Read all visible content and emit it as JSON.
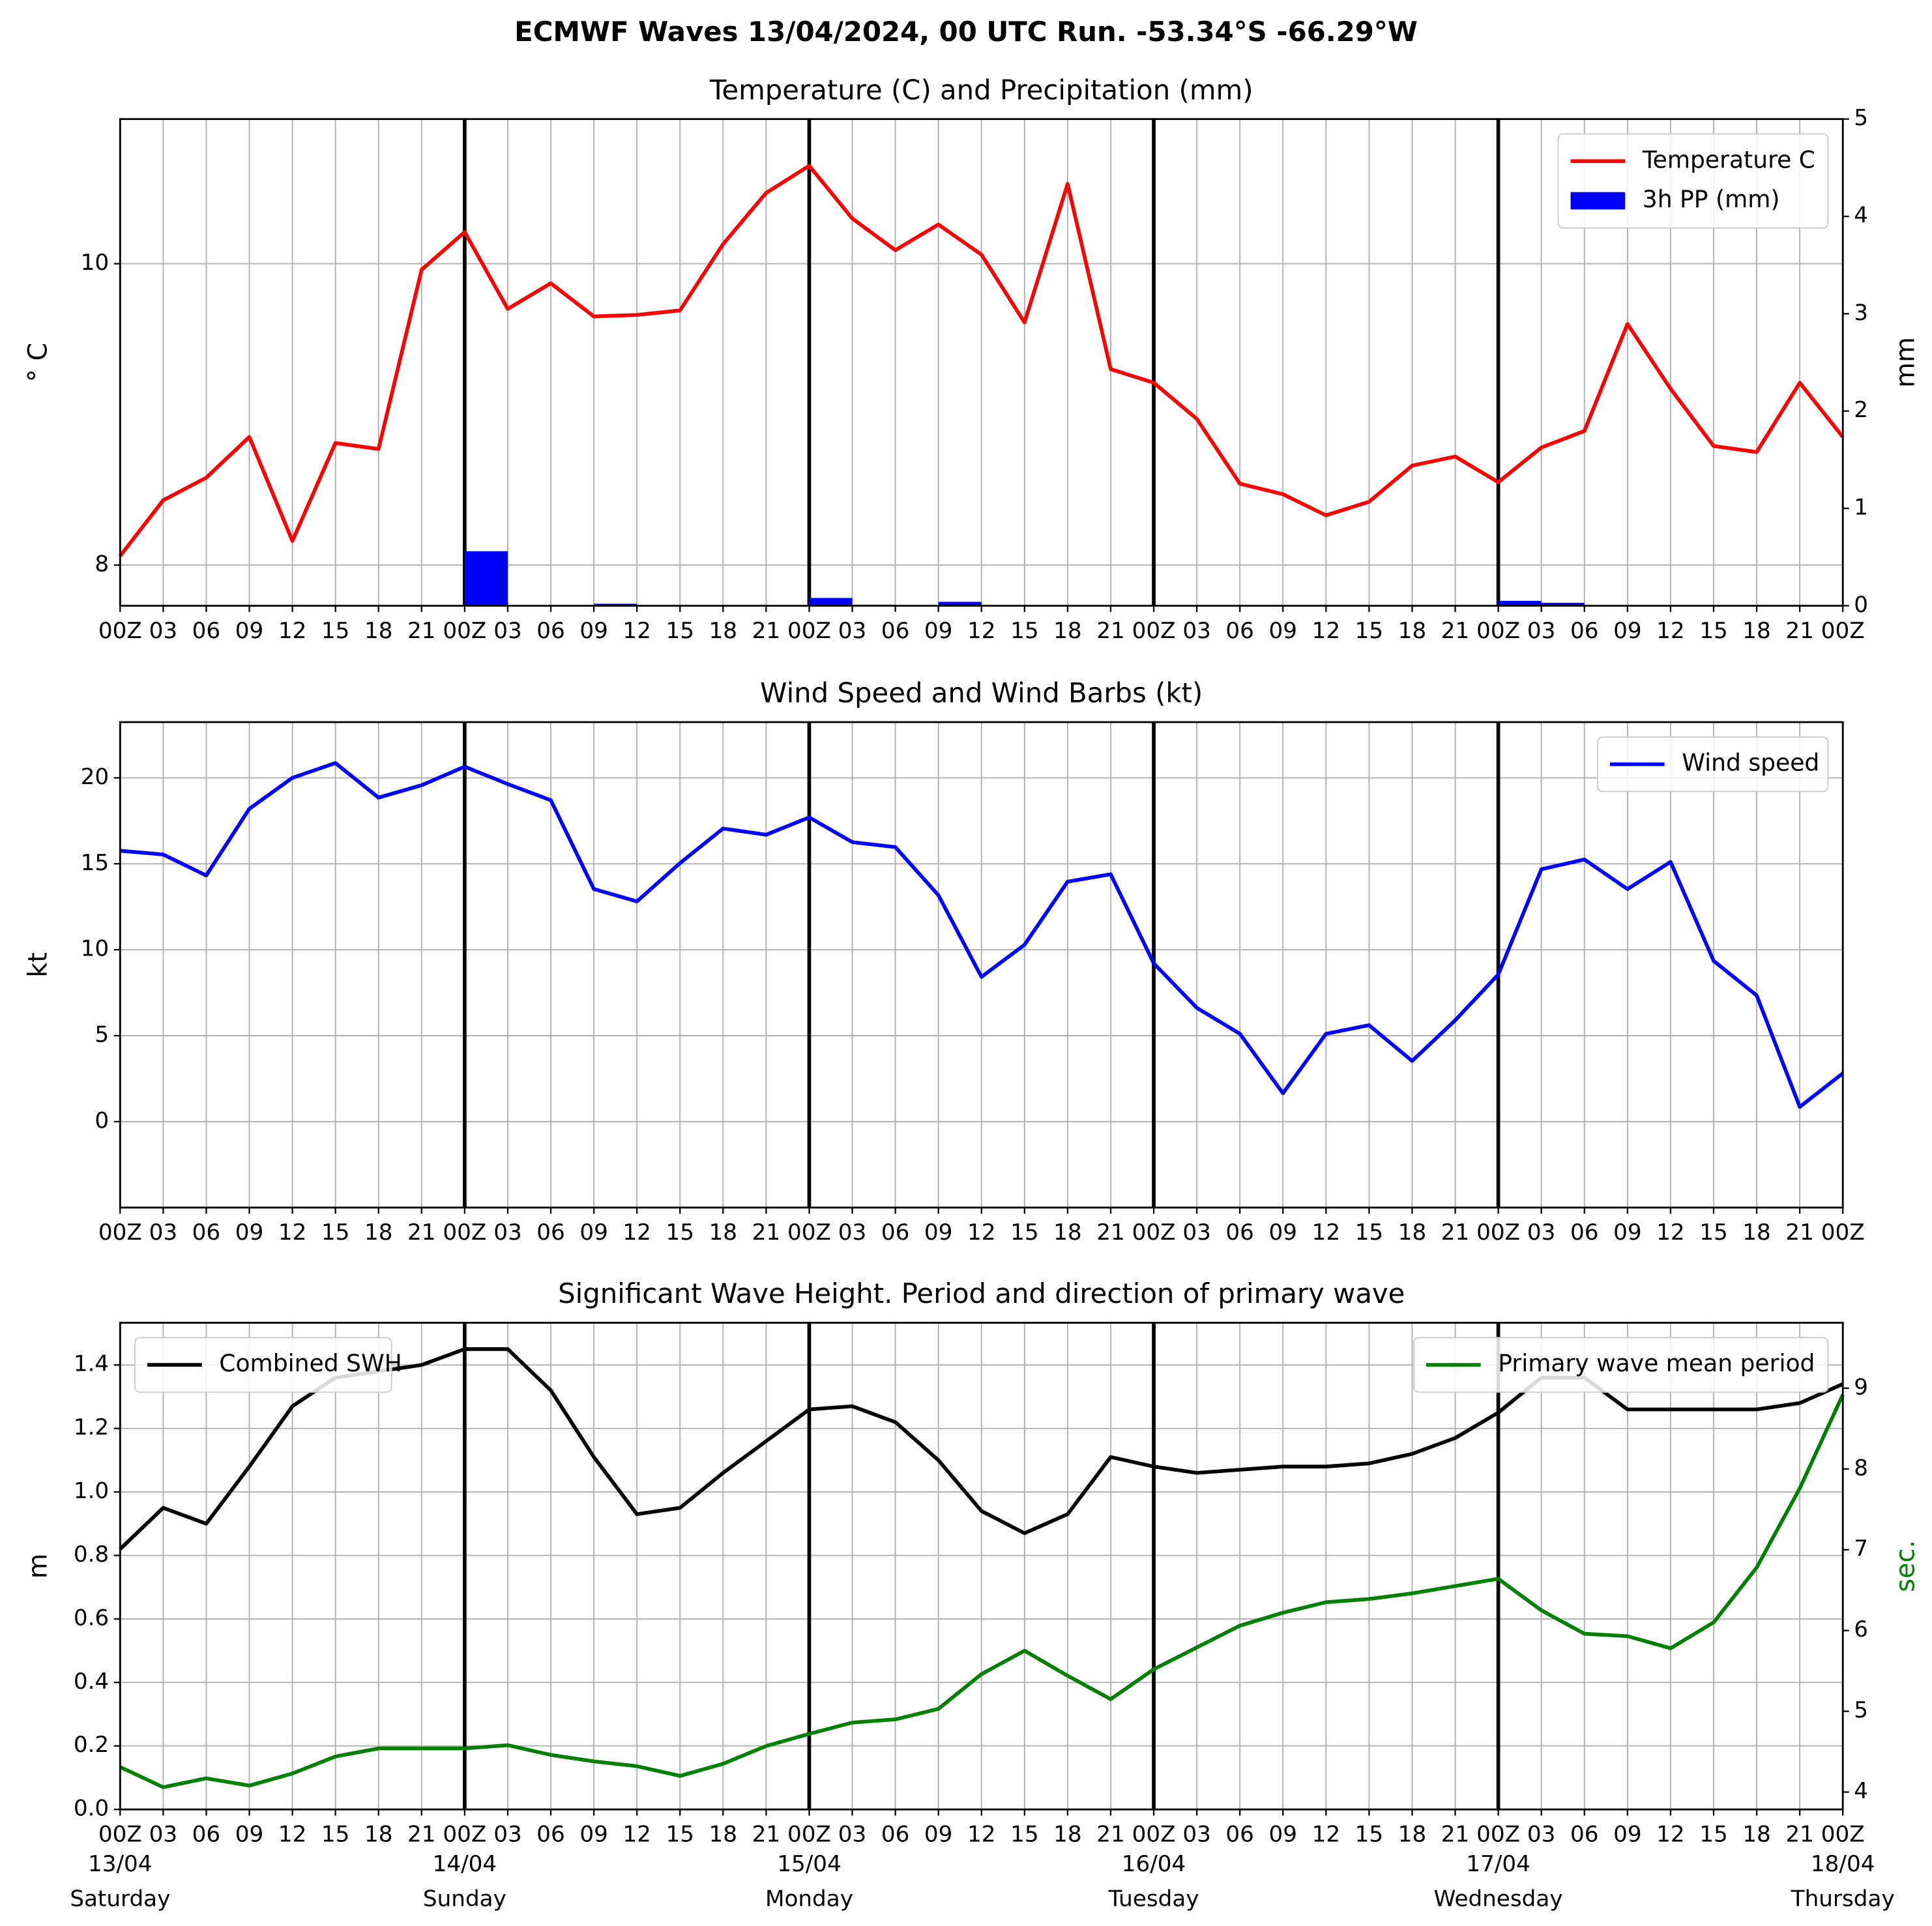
{
  "title": "ECMWF Waves 13/04/2024, 00 UTC Run. -53.34°S -66.29°W",
  "chart_data": [
    {
      "type": "combo",
      "title": "Temperature (C) and Precipitation (mm)",
      "ylabel": "° C",
      "y2label": "mm",
      "categories": [
        "00Z",
        "03",
        "06",
        "09",
        "12",
        "15",
        "18",
        "21",
        "00Z",
        "03",
        "06",
        "09",
        "12",
        "15",
        "18",
        "21",
        "00Z",
        "03",
        "06",
        "09",
        "12",
        "15",
        "18",
        "21",
        "00Z",
        "03",
        "06",
        "09",
        "12",
        "15",
        "18",
        "21",
        "00Z",
        "03",
        "06",
        "09",
        "12",
        "15",
        "18",
        "21",
        "00Z"
      ],
      "ylim": [
        7.73,
        10.96
      ],
      "yticks": [
        8,
        10
      ],
      "y2lim": [
        0,
        5
      ],
      "y2ticks": [
        0,
        1,
        2,
        3,
        4,
        5
      ],
      "grid": true,
      "series": [
        {
          "name": "Temperature C",
          "type": "line",
          "color": "#ff0000",
          "legend": "upper right",
          "values": [
            8.06,
            8.43,
            8.58,
            8.85,
            8.16,
            8.81,
            8.77,
            9.96,
            10.21,
            9.7,
            9.87,
            9.65,
            9.66,
            9.69,
            10.13,
            10.47,
            10.65,
            10.3,
            10.09,
            10.26,
            10.06,
            9.61,
            10.53,
            9.3,
            9.21,
            8.97,
            8.54,
            8.47,
            8.33,
            8.42,
            8.66,
            8.72,
            8.55,
            8.78,
            8.89,
            9.6,
            9.17,
            8.79,
            8.75,
            9.21,
            8.85
          ]
        },
        {
          "name": "3h PP (mm)",
          "type": "bar",
          "axis": "y2",
          "color": "#0000ff",
          "legend": "upper right",
          "values": [
            0,
            0,
            0,
            0,
            0,
            0,
            0,
            0,
            0.56,
            0,
            0,
            0.02,
            0,
            0,
            0,
            0,
            0.08,
            0.01,
            0,
            0.04,
            0,
            0,
            0,
            0,
            0,
            0,
            0,
            0,
            0,
            0,
            0,
            0,
            0.05,
            0.03,
            0,
            0,
            0,
            0,
            0,
            0,
            0
          ]
        }
      ]
    },
    {
      "type": "line",
      "title": "Wind Speed and Wind Barbs (kt)",
      "ylabel": "kt",
      "categories": [
        "00Z",
        "03",
        "06",
        "09",
        "12",
        "15",
        "18",
        "21",
        "00Z",
        "03",
        "06",
        "09",
        "12",
        "15",
        "18",
        "21",
        "00Z",
        "03",
        "06",
        "09",
        "12",
        "15",
        "18",
        "21",
        "00Z",
        "03",
        "06",
        "09",
        "12",
        "15",
        "18",
        "21",
        "00Z",
        "03",
        "06",
        "09",
        "12",
        "15",
        "18",
        "21",
        "00Z"
      ],
      "ylim": [
        -5,
        23.24
      ],
      "yticks": [
        0,
        5,
        10,
        15,
        20
      ],
      "grid": true,
      "series": [
        {
          "name": "Wind speed",
          "type": "line",
          "color": "#0000ff",
          "legend": "upper right",
          "values": [
            15.76,
            15.54,
            14.32,
            18.2,
            20.0,
            20.86,
            18.85,
            19.57,
            20.65,
            19.64,
            18.7,
            13.53,
            12.81,
            15.04,
            17.05,
            16.69,
            17.7,
            16.26,
            15.97,
            13.17,
            8.42,
            10.29,
            13.96,
            14.39,
            9.21,
            6.62,
            5.11,
            1.65,
            5.11,
            5.61,
            3.53,
            5.9,
            8.56,
            14.68,
            15.25,
            13.53,
            15.11,
            9.35,
            7.34,
            0.86,
            2.81
          ]
        }
      ]
    },
    {
      "type": "line",
      "title": "Significant Wave Height. Period and direction of primary wave",
      "ylabel": "m",
      "y2label": "sec.",
      "y2label_color": "#008000",
      "categories": [
        "00Z",
        "03",
        "06",
        "09",
        "12",
        "15",
        "18",
        "21",
        "00Z",
        "03",
        "06",
        "09",
        "12",
        "15",
        "18",
        "21",
        "00Z",
        "03",
        "06",
        "09",
        "12",
        "15",
        "18",
        "21",
        "00Z",
        "03",
        "06",
        "09",
        "12",
        "15",
        "18",
        "21",
        "00Z",
        "03",
        "06",
        "09",
        "12",
        "15",
        "18",
        "21",
        "00Z"
      ],
      "dates": [
        "13/04",
        null,
        null,
        null,
        null,
        null,
        null,
        null,
        "14/04",
        null,
        null,
        null,
        null,
        null,
        null,
        null,
        "15/04",
        null,
        null,
        null,
        null,
        null,
        null,
        null,
        "16/04",
        null,
        null,
        null,
        null,
        null,
        null,
        null,
        "17/04",
        null,
        null,
        null,
        null,
        null,
        null,
        null,
        "18/04"
      ],
      "weekdays": [
        "Saturday",
        null,
        null,
        null,
        null,
        null,
        null,
        null,
        "Sunday",
        null,
        null,
        null,
        null,
        null,
        null,
        null,
        "Monday",
        null,
        null,
        null,
        null,
        null,
        null,
        null,
        "Tuesday",
        null,
        null,
        null,
        null,
        null,
        null,
        null,
        "Wednesday",
        null,
        null,
        null,
        null,
        null,
        null,
        null,
        "Thursday"
      ],
      "ylim": [
        0,
        1.533
      ],
      "yticks": [
        {
          "value": 0,
          "label": "0.0"
        },
        0.2,
        0.4,
        0.6,
        0.8,
        {
          "value": 1,
          "label": "1.0"
        },
        1.2,
        1.4
      ],
      "y2lim": [
        3.785,
        9.81
      ],
      "y2ticks": [
        4,
        5,
        6,
        7,
        8,
        9
      ],
      "grid": true,
      "series": [
        {
          "name": "Combined SWH",
          "type": "line",
          "color": "#000000",
          "legend": "upper left",
          "values": [
            0.82,
            0.95,
            0.9,
            1.08,
            1.27,
            1.36,
            1.38,
            1.4,
            1.45,
            1.45,
            1.32,
            1.11,
            0.93,
            0.95,
            1.06,
            1.16,
            1.26,
            1.27,
            1.22,
            1.1,
            0.94,
            0.87,
            0.93,
            1.11,
            1.08,
            1.06,
            1.07,
            1.08,
            1.08,
            1.09,
            1.12,
            1.17,
            1.25,
            1.36,
            1.36,
            1.26,
            1.26,
            1.26,
            1.26,
            1.28,
            1.34
          ]
        },
        {
          "name": "Primary wave mean period",
          "type": "line",
          "axis": "y2",
          "color": "#008000",
          "legend": "upper right",
          "values": [
            4.31,
            4.06,
            4.17,
            4.08,
            4.23,
            4.44,
            4.54,
            4.54,
            4.54,
            4.58,
            4.46,
            4.38,
            4.32,
            4.2,
            4.35,
            4.57,
            4.72,
            4.86,
            4.9,
            5.03,
            5.46,
            5.75,
            5.44,
            5.15,
            5.52,
            5.79,
            6.06,
            6.22,
            6.35,
            6.39,
            6.46,
            6.55,
            6.64,
            6.25,
            5.96,
            5.93,
            5.78,
            6.1,
            6.78,
            7.76,
            8.92
          ]
        }
      ]
    }
  ]
}
